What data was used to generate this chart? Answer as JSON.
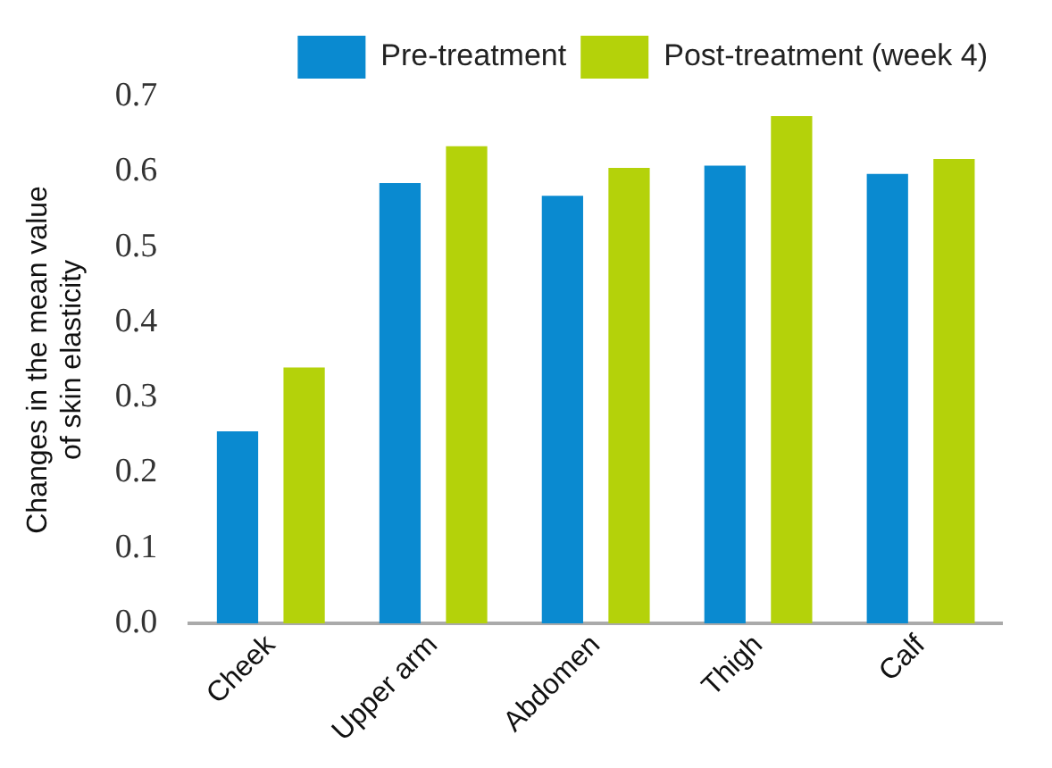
{
  "chart_data": {
    "type": "bar",
    "ylabel": "Changes in the mean value\nof skin elasticity",
    "categories": [
      "Cheek",
      "Upper arm",
      "Abdomen",
      "Thigh",
      "Calf"
    ],
    "series": [
      {
        "name": "Pre-treatment",
        "color": "#0a8ad0",
        "values": [
          0.255,
          0.585,
          0.568,
          0.608,
          0.597
        ]
      },
      {
        "name": "Post-treatment (week 4)",
        "color": "#b4d20a",
        "values": [
          0.34,
          0.634,
          0.605,
          0.674,
          0.617
        ]
      }
    ],
    "ylim": [
      0,
      0.7
    ],
    "yticks": [
      {
        "value": 0,
        "label": "0.0"
      },
      0.1,
      0.2,
      0.3,
      0.4,
      0.5,
      0.6,
      0.7
    ],
    "grid": false,
    "legend": "top right"
  }
}
